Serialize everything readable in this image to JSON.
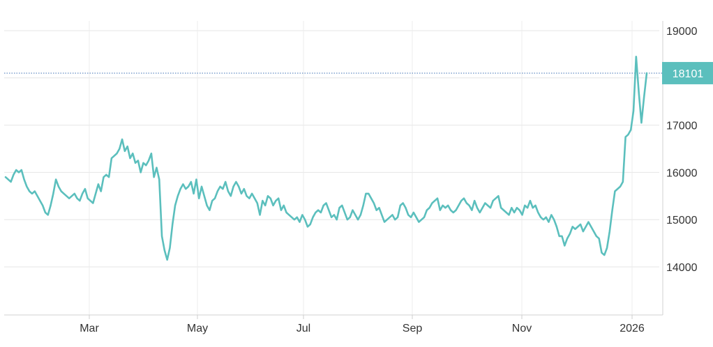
{
  "chart_data": {
    "type": "line",
    "title": "",
    "xlabel": "",
    "ylabel": "",
    "x_ticks": [
      "Mar",
      "May",
      "Jul",
      "Sep",
      "Nov",
      "2026"
    ],
    "y_ticks": [
      14000,
      15000,
      16000,
      17000,
      18000,
      19000
    ],
    "y_tick_labels": [
      "14000",
      "15000",
      "16000",
      "17000",
      "",
      "19000"
    ],
    "ylim": [
      13000,
      19400
    ],
    "grid": true,
    "legend": "none",
    "line_color": "#5bbfbd",
    "last_value": 18101,
    "last_value_label": "18101",
    "series": [
      {
        "values": [
          15900,
          15850,
          15800,
          15950,
          16050,
          16000,
          16050,
          15850,
          15700,
          15600,
          15550,
          15600,
          15500,
          15400,
          15300,
          15150,
          15100,
          15300,
          15550,
          15850,
          15700,
          15600,
          15550,
          15500,
          15450,
          15500,
          15550,
          15450,
          15400,
          15550,
          15650,
          15450,
          15400,
          15350,
          15550,
          15750,
          15600,
          15900,
          15950,
          15900,
          16300,
          16350,
          16400,
          16500,
          16700,
          16450,
          16550,
          16300,
          16400,
          16200,
          16250,
          16000,
          16200,
          16150,
          16250,
          16400,
          15900,
          16100,
          15850,
          14650,
          14350,
          14150,
          14400,
          14900,
          15300,
          15500,
          15650,
          15750,
          15650,
          15700,
          15800,
          15550,
          15850,
          15450,
          15700,
          15500,
          15300,
          15200,
          15400,
          15450,
          15600,
          15700,
          15650,
          15800,
          15600,
          15500,
          15700,
          15800,
          15700,
          15550,
          15650,
          15500,
          15450,
          15550,
          15450,
          15350,
          15100,
          15400,
          15300,
          15500,
          15450,
          15300,
          15400,
          15450,
          15200,
          15300,
          15150,
          15100,
          15050,
          15000,
          15050,
          14950,
          15100,
          15000,
          14850,
          14900,
          15050,
          15150,
          15200,
          15150,
          15300,
          15350,
          15200,
          15050,
          15100,
          15000,
          15250,
          15300,
          15150,
          15000,
          15050,
          15200,
          15100,
          15000,
          15100,
          15300,
          15550,
          15550,
          15450,
          15350,
          15200,
          15250,
          15100,
          14950,
          15000,
          15050,
          15100,
          15000,
          15050,
          15300,
          15350,
          15250,
          15100,
          15050,
          15150,
          15050,
          14950,
          15000,
          15050,
          15200,
          15250,
          15350,
          15400,
          15450,
          15200,
          15300,
          15250,
          15300,
          15200,
          15150,
          15200,
          15300,
          15400,
          15450,
          15350,
          15300,
          15200,
          15400,
          15250,
          15150,
          15250,
          15350,
          15300,
          15250,
          15400,
          15450,
          15500,
          15250,
          15200,
          15150,
          15100,
          15250,
          15150,
          15250,
          15200,
          15100,
          15300,
          15250,
          15400,
          15250,
          15300,
          15150,
          15050,
          15000,
          15050,
          14950,
          15100,
          15000,
          14850,
          14650,
          14650,
          14450,
          14600,
          14700,
          14850,
          14800,
          14850,
          14900,
          14750,
          14850,
          14950,
          14850,
          14750,
          14650,
          14600,
          14300,
          14250,
          14400,
          14750,
          15200,
          15600,
          15650,
          15700,
          15800,
          16750,
          16800,
          16900,
          17300,
          18450,
          17700,
          17050,
          17600,
          18101
        ]
      }
    ]
  }
}
